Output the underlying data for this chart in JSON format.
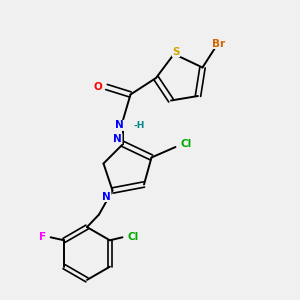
{
  "bg_color": "#f0f0f0",
  "bond_color": "#000000",
  "atom_colors": {
    "Br": "#cc6600",
    "S": "#ccaa00",
    "O": "#ff0000",
    "N": "#0000ff",
    "H": "#008888",
    "Cl": "#00aa00",
    "F": "#ff00ff"
  },
  "figsize": [
    3.0,
    3.0
  ],
  "dpi": 100
}
